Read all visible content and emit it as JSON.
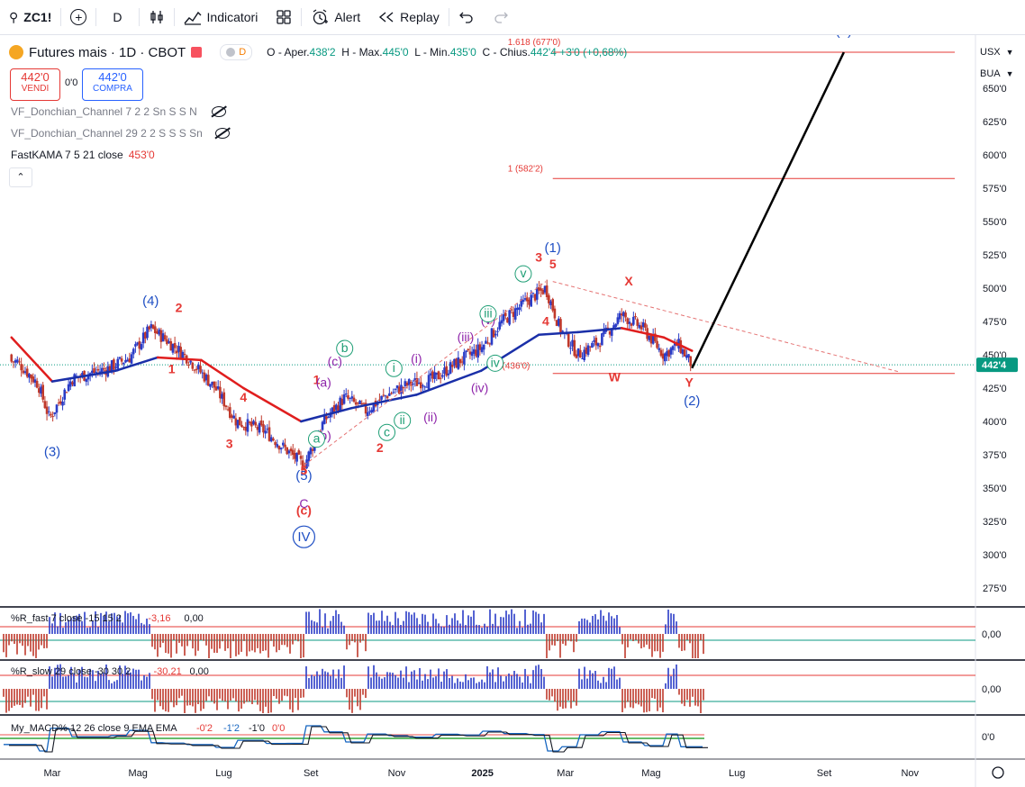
{
  "toolbar": {
    "symbol": "ZC1!",
    "interval": "D",
    "indicators_label": "Indicatori",
    "alert_label": "Alert",
    "replay_label": "Replay"
  },
  "legend": {
    "title": "Futures mais · 1D · CBOT",
    "badge": "D",
    "ohlc": {
      "o_label": "O",
      "o_name": "Aper.",
      "o_value": "438'2",
      "h_label": "H",
      "h_name": "Max.",
      "h_value": "445'0",
      "l_label": "L",
      "l_name": "Min.",
      "l_value": "435'0",
      "c_label": "C",
      "c_name": "Chius.",
      "c_value": "442'4",
      "change": "+3'0 (+0,68%)"
    },
    "sell": {
      "price": "442'0",
      "label": "VENDI"
    },
    "spread": "0'0",
    "buy": {
      "price": "442'0",
      "label": "COMPRA"
    },
    "indicators": [
      {
        "name": "VF_Donchian_Channel 7 2 2 Sn S S N"
      },
      {
        "name": "VF_Donchian_Channel 29 2 2 S S S Sn"
      },
      {
        "name": "FastKAMA 7 5 21 close",
        "value": "453'0"
      }
    ]
  },
  "price_axis": {
    "unit": "USX",
    "exchange": "BUA",
    "ticks": [
      "650'0",
      "625'0",
      "600'0",
      "575'0",
      "550'0",
      "525'0",
      "500'0",
      "475'0",
      "450'0",
      "425'0",
      "400'0",
      "375'0",
      "350'0",
      "325'0",
      "300'0",
      "275'0"
    ],
    "last_price": "442'4"
  },
  "time_axis": {
    "labels": [
      "Mar",
      "Mag",
      "Lug",
      "Set",
      "Nov",
      "2025",
      "Mar",
      "Mag",
      "Lug",
      "Set",
      "Nov"
    ]
  },
  "fib_levels": [
    {
      "label": "1.618 (677'0)"
    },
    {
      "label": "1 (582'2)"
    },
    {
      "label": "(436'0)"
    }
  ],
  "wave_labels": {
    "blue": [
      "(3)",
      "(4)",
      "(5)",
      "IV",
      "(1)",
      "(2)",
      "(3)"
    ],
    "red": [
      "2",
      "1",
      "4",
      "3",
      "5",
      "(c)",
      "1",
      "2",
      "3",
      "4",
      "5",
      "X",
      "W",
      "Y"
    ],
    "purple": [
      "(a)",
      "(b)",
      "(c)",
      "(i)",
      "(ii)",
      "(iii)",
      "(iv)",
      "(v)",
      "C"
    ],
    "green": [
      "a",
      "b",
      "c",
      "i",
      "ii",
      "iii",
      "iv",
      "v"
    ]
  },
  "subpanels": [
    {
      "name": "%R_fast 7 close -15 15 2",
      "v1": "-3,16",
      "v2": "0,00",
      "axis": "0,00"
    },
    {
      "name": "%R_slow 29 close -30 30 2",
      "v1": "-30,21",
      "v2": "0,00",
      "axis": "0,00"
    },
    {
      "name": "My_MACD% 12 26 close 9 EMA EMA",
      "v1": "-0'2",
      "v2": "-1'2",
      "v3": "-1'0",
      "v4": "0'0",
      "axis": "0'0"
    }
  ],
  "colors": {
    "up": "#2a3cc7",
    "down": "#c0392b",
    "kama_red": "#e01e1e",
    "kama_blue": "#1a2fa8",
    "wave_blue": "#1f4fc4",
    "wave_red": "#e53935",
    "wave_purple": "#8e24aa",
    "wave_green": "#1e9e75"
  },
  "chart_data": {
    "type": "candlestick",
    "symbol": "ZC1!",
    "title": "Futures mais · 1D · CBOT",
    "ylim": [
      260,
      680
    ],
    "x_range": [
      "2024-02",
      "2025-11"
    ],
    "last_close": 442.5,
    "approx_closes": [
      {
        "date": "2024-02-05",
        "close": 445
      },
      {
        "date": "2024-02-20",
        "close": 428
      },
      {
        "date": "2024-02-28",
        "close": 402
      },
      {
        "date": "2024-03-15",
        "close": 432
      },
      {
        "date": "2024-04-10",
        "close": 440
      },
      {
        "date": "2024-04-25",
        "close": 448
      },
      {
        "date": "2024-05-10",
        "close": 470
      },
      {
        "date": "2024-05-20",
        "close": 462
      },
      {
        "date": "2024-06-05",
        "close": 448
      },
      {
        "date": "2024-06-25",
        "close": 425
      },
      {
        "date": "2024-07-10",
        "close": 400
      },
      {
        "date": "2024-07-30",
        "close": 393
      },
      {
        "date": "2024-08-15",
        "close": 378
      },
      {
        "date": "2024-08-27",
        "close": 367
      },
      {
        "date": "2024-09-10",
        "close": 400
      },
      {
        "date": "2024-09-25",
        "close": 418
      },
      {
        "date": "2024-10-10",
        "close": 408
      },
      {
        "date": "2024-10-25",
        "close": 420
      },
      {
        "date": "2024-11-10",
        "close": 428
      },
      {
        "date": "2024-11-28",
        "close": 432
      },
      {
        "date": "2024-12-15",
        "close": 445
      },
      {
        "date": "2024-12-31",
        "close": 455
      },
      {
        "date": "2025-01-15",
        "close": 475
      },
      {
        "date": "2025-02-01",
        "close": 490
      },
      {
        "date": "2025-02-15",
        "close": 500
      },
      {
        "date": "2025-02-25",
        "close": 470
      },
      {
        "date": "2025-03-10",
        "close": 450
      },
      {
        "date": "2025-03-25",
        "close": 460
      },
      {
        "date": "2025-04-10",
        "close": 480
      },
      {
        "date": "2025-04-25",
        "close": 470
      },
      {
        "date": "2025-05-10",
        "close": 450
      },
      {
        "date": "2025-05-20",
        "close": 458
      },
      {
        "date": "2025-05-30",
        "close": 442.5
      }
    ],
    "kama": [
      {
        "date": "2024-02-01",
        "value": 463
      },
      {
        "date": "2024-03-01",
        "value": 430
      },
      {
        "date": "2024-04-15",
        "value": 438
      },
      {
        "date": "2024-05-15",
        "value": 448
      },
      {
        "date": "2024-06-15",
        "value": 446
      },
      {
        "date": "2024-07-15",
        "value": 425
      },
      {
        "date": "2024-08-25",
        "value": 400
      },
      {
        "date": "2024-09-30",
        "value": 410
      },
      {
        "date": "2024-11-15",
        "value": 420
      },
      {
        "date": "2024-12-31",
        "value": 438
      },
      {
        "date": "2025-02-10",
        "value": 465
      },
      {
        "date": "2025-03-10",
        "value": 467
      },
      {
        "date": "2025-04-10",
        "value": 470
      },
      {
        "date": "2025-05-10",
        "value": 463
      },
      {
        "date": "2025-05-30",
        "value": 453
      }
    ],
    "projection": [
      {
        "date": "2025-05-30",
        "value": 440
      },
      {
        "date": "2025-09-15",
        "value": 677
      }
    ],
    "horizontal_levels": [
      677,
      582.25,
      436
    ],
    "triangle_line": [
      {
        "date": "2025-02-20",
        "value": 505
      },
      {
        "date": "2025-10-25",
        "value": 437
      }
    ]
  }
}
